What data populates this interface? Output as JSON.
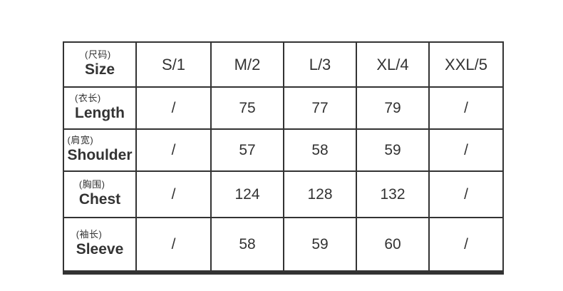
{
  "page": {
    "background": "#ffffff"
  },
  "table": {
    "line_color": "#333333",
    "text_color": "#333333",
    "header": {
      "size_label_cn": "(尺码)",
      "size_label_en": "Size",
      "columns": [
        "S/1",
        "M/2",
        "L/3",
        "XL/4",
        "XXL/5"
      ]
    },
    "rows": [
      {
        "label_cn": "(衣长)",
        "label_en": "Length",
        "values": [
          "/",
          "75",
          "77",
          "79",
          "/"
        ]
      },
      {
        "label_cn": "(肩宽)",
        "label_en": "Shoulder",
        "values": [
          "/",
          "57",
          "58",
          "59",
          "/"
        ]
      },
      {
        "label_cn": "(胸围)",
        "label_en": "Chest",
        "values": [
          "/",
          "124",
          "128",
          "132",
          "/"
        ]
      },
      {
        "label_cn": "(袖长)",
        "label_en": "Sleeve",
        "values": [
          "/",
          "58",
          "59",
          "60",
          "/"
        ]
      }
    ]
  }
}
